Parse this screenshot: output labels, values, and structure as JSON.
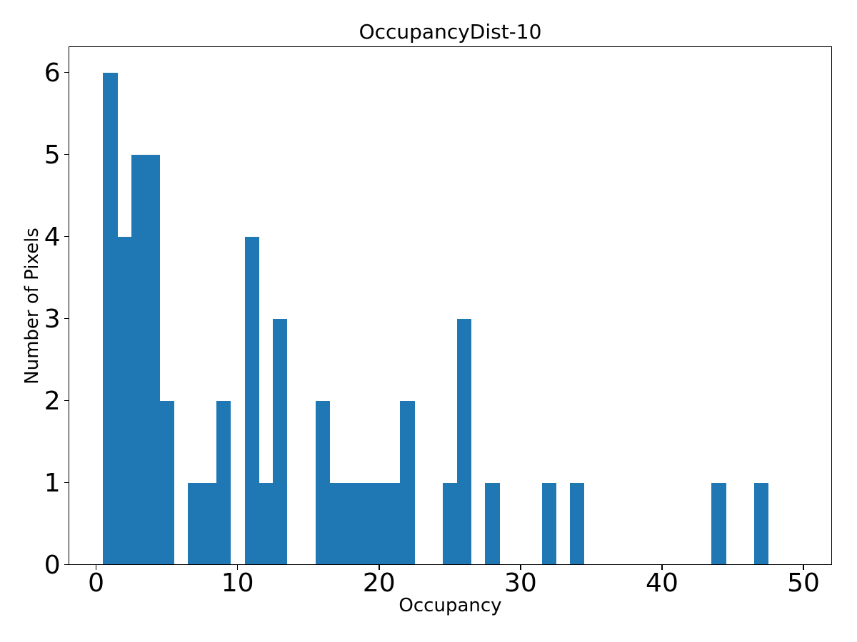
{
  "figure": {
    "background": "#ffffff"
  },
  "chart_data": {
    "type": "bar",
    "subtype": "histogram",
    "title": "OccupancyDist-10",
    "xlabel": "Occupancy",
    "ylabel": "Number of Pixels",
    "bar_color": "#1f77b4",
    "text_color": "#000000",
    "grid": false,
    "legend": null,
    "xlim": [
      -1.91,
      51.98
    ],
    "ylim": [
      0,
      6.313
    ],
    "xticks": [
      0,
      10,
      20,
      30,
      40,
      50
    ],
    "yticks": [
      0,
      1,
      2,
      3,
      4,
      5,
      6
    ],
    "bin_width": 1,
    "bins": [
      {
        "x": 1,
        "count": 6
      },
      {
        "x": 2,
        "count": 4
      },
      {
        "x": 3,
        "count": 5
      },
      {
        "x": 4,
        "count": 5
      },
      {
        "x": 5,
        "count": 2
      },
      {
        "x": 7,
        "count": 1
      },
      {
        "x": 8,
        "count": 1
      },
      {
        "x": 9,
        "count": 2
      },
      {
        "x": 11,
        "count": 4
      },
      {
        "x": 12,
        "count": 1
      },
      {
        "x": 13,
        "count": 3
      },
      {
        "x": 16,
        "count": 2
      },
      {
        "x": 17,
        "count": 1
      },
      {
        "x": 18,
        "count": 1
      },
      {
        "x": 19,
        "count": 1
      },
      {
        "x": 20,
        "count": 1
      },
      {
        "x": 21,
        "count": 1
      },
      {
        "x": 22,
        "count": 2
      },
      {
        "x": 25,
        "count": 1
      },
      {
        "x": 26,
        "count": 3
      },
      {
        "x": 28,
        "count": 1
      },
      {
        "x": 32,
        "count": 1
      },
      {
        "x": 34,
        "count": 1
      },
      {
        "x": 44,
        "count": 1
      },
      {
        "x": 47,
        "count": 1
      }
    ]
  }
}
